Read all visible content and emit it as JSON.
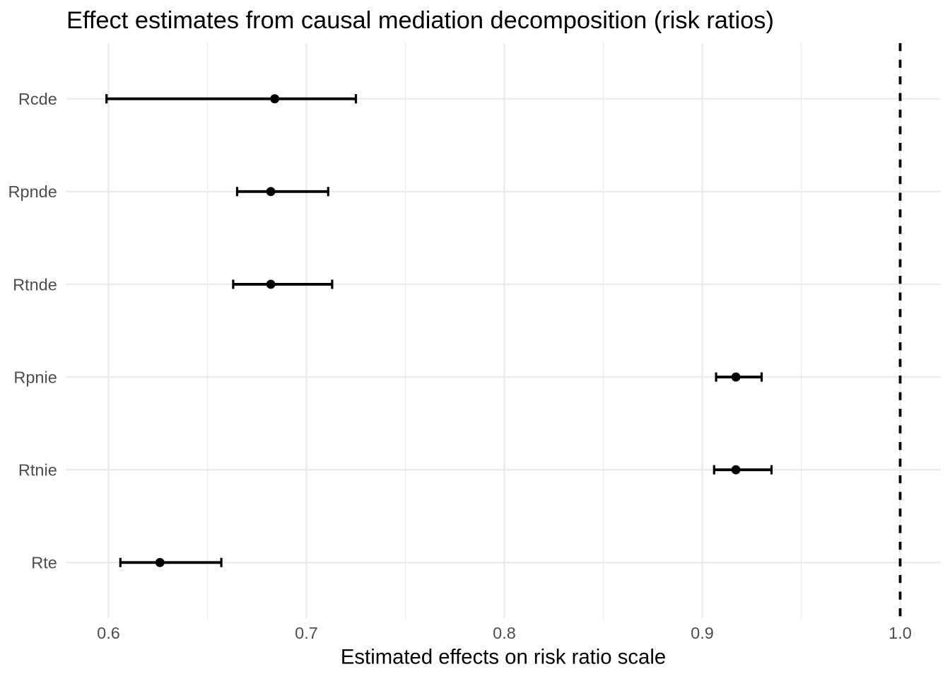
{
  "chart_data": {
    "type": "pointrange",
    "title": "Effect estimates from causal mediation decomposition (risk ratios)",
    "xlabel": "Estimated effects on risk ratio scale",
    "ylabel": "",
    "rows": [
      {
        "label": "Rcde",
        "estimate": 0.684,
        "ci_low": 0.599,
        "ci_high": 0.725
      },
      {
        "label": "Rpnde",
        "estimate": 0.682,
        "ci_low": 0.665,
        "ci_high": 0.711
      },
      {
        "label": "Rtnde",
        "estimate": 0.682,
        "ci_low": 0.663,
        "ci_high": 0.713
      },
      {
        "label": "Rpnie",
        "estimate": 0.917,
        "ci_low": 0.907,
        "ci_high": 0.93
      },
      {
        "label": "Rtnie",
        "estimate": 0.917,
        "ci_low": 0.906,
        "ci_high": 0.935
      },
      {
        "label": "Rte",
        "estimate": 0.626,
        "ci_low": 0.606,
        "ci_high": 0.657
      }
    ],
    "x_axis": {
      "ticks": [
        0.6,
        0.7,
        0.8,
        0.9,
        1.0
      ],
      "tick_labels": [
        "0.6",
        "0.7",
        "0.8",
        "0.9",
        "1.0"
      ],
      "minor_ticks": [
        0.65,
        0.75,
        0.85,
        0.95
      ],
      "range": [
        0.57875,
        1.02018
      ]
    },
    "reference_line": {
      "x": 1.0,
      "style": "dashed",
      "color": "#000000"
    },
    "grid": true,
    "legend": "none",
    "colors": {
      "background": "#FFFFFF",
      "grid_major": "#EBEBEB",
      "grid_minor": "#EBEBEB",
      "axis_text": "#4D4D4D",
      "title_text": "#000000",
      "data": "#000000"
    }
  }
}
